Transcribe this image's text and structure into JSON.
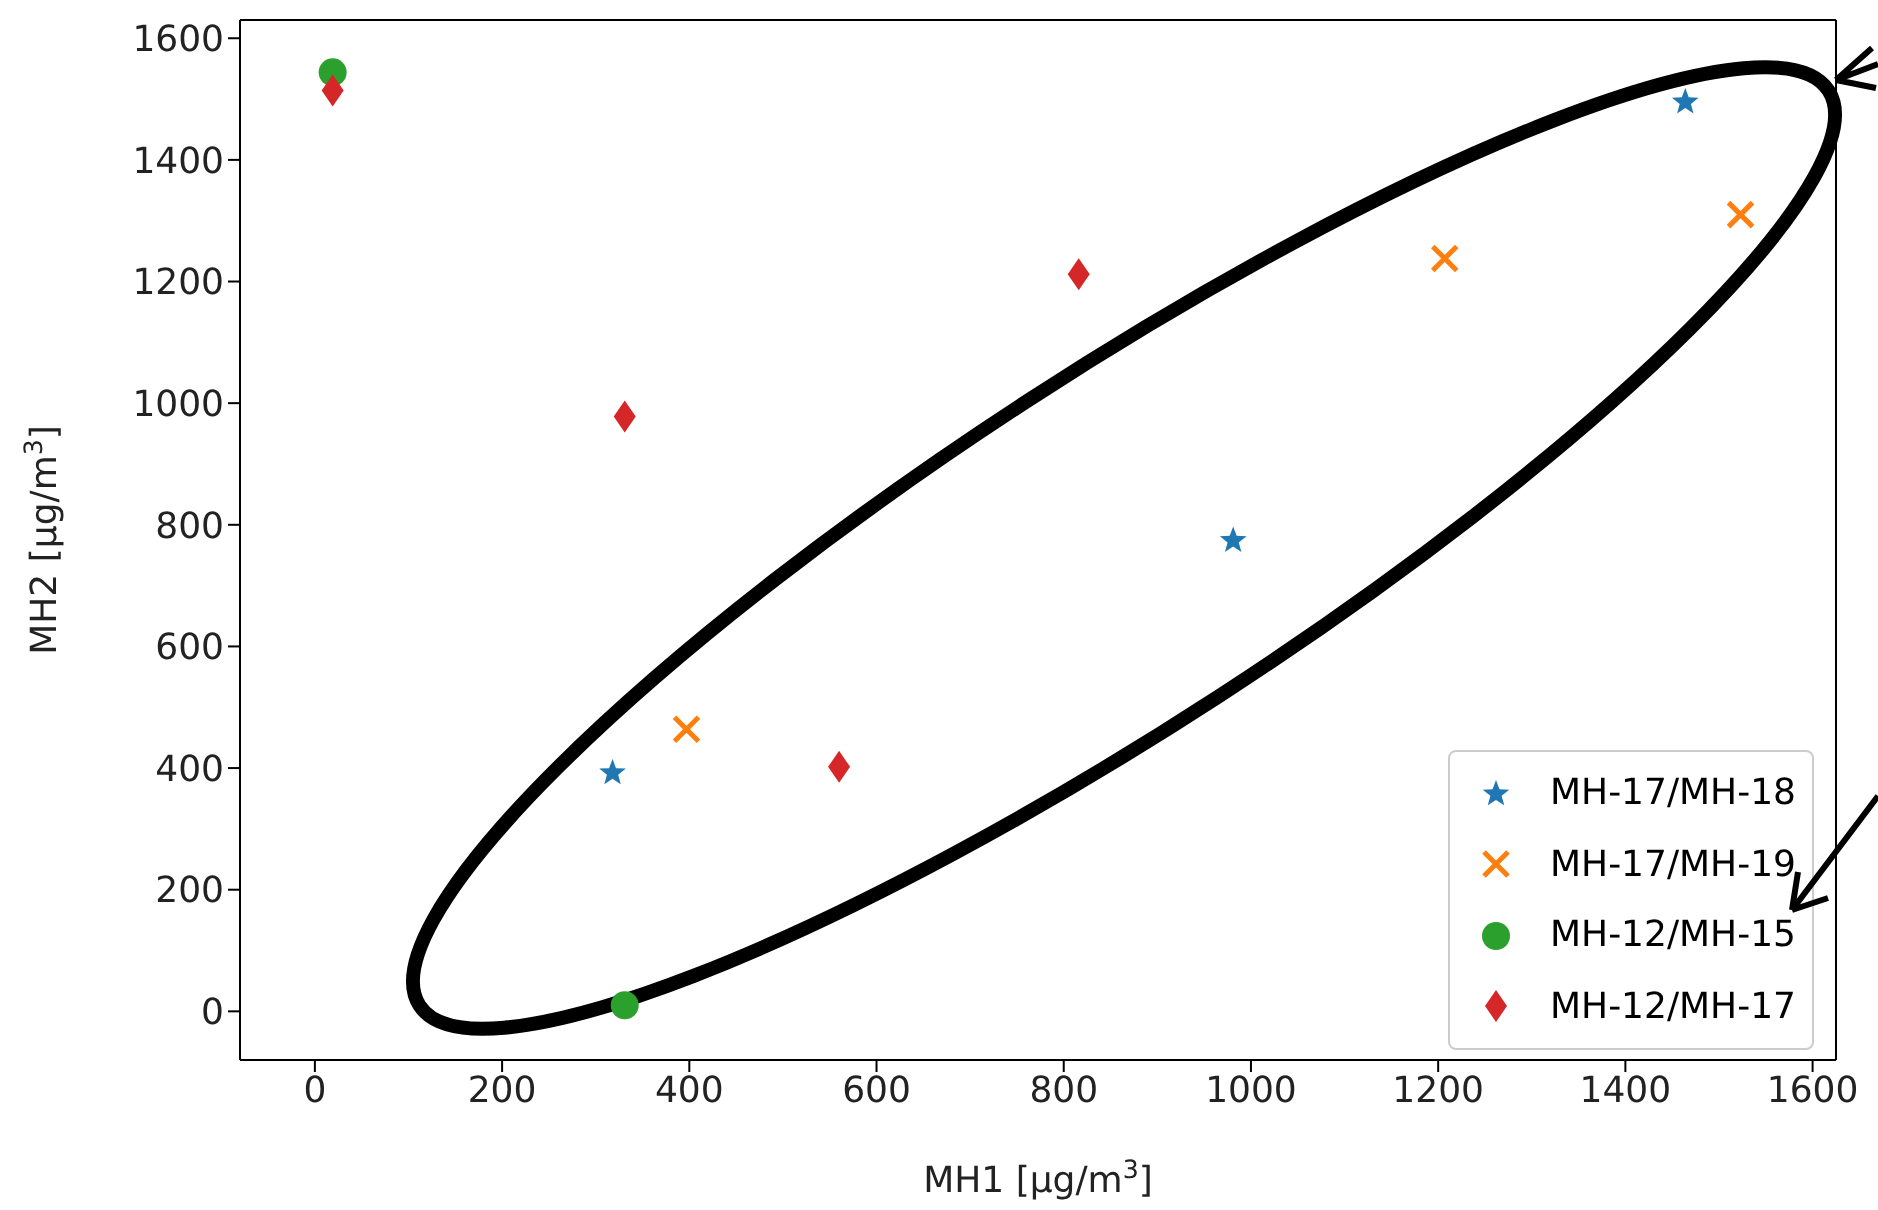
{
  "chart_data": {
    "type": "scatter",
    "xlabel": "MH1 [μg/m$^{3}$]",
    "ylabel": "MH2 [μg/m$^{3}$]",
    "xlim": [
      -80,
      1625
    ],
    "ylim": [
      -80,
      1630
    ],
    "xticks": [
      0,
      200,
      400,
      600,
      800,
      1000,
      1200,
      1400,
      1600
    ],
    "yticks": [
      0,
      200,
      400,
      600,
      800,
      1000,
      1200,
      1400,
      1600
    ],
    "legend": "bottom right",
    "series": [
      {
        "name": "MH-17/MH-18",
        "color": "#1f77b4",
        "marker": "star",
        "x": [
          318,
          981,
          1464
        ],
        "values": [
          392,
          774,
          1495
        ]
      },
      {
        "name": "MH-17/MH-19",
        "color": "#ff7f0e",
        "marker": "cross",
        "x": [
          397,
          1207,
          1523
        ],
        "values": [
          464,
          1238,
          1310
        ]
      },
      {
        "name": "MH-12/MH-15",
        "color": "#2ca02c",
        "marker": "circle",
        "x": [
          19,
          331
        ],
        "values": [
          1544,
          10
        ]
      },
      {
        "name": "MH-12/MH-17",
        "color": "#d62728",
        "marker": "diamond",
        "x": [
          19,
          331,
          560,
          816
        ],
        "values": [
          1514,
          978,
          402,
          1212
        ]
      }
    ]
  }
}
